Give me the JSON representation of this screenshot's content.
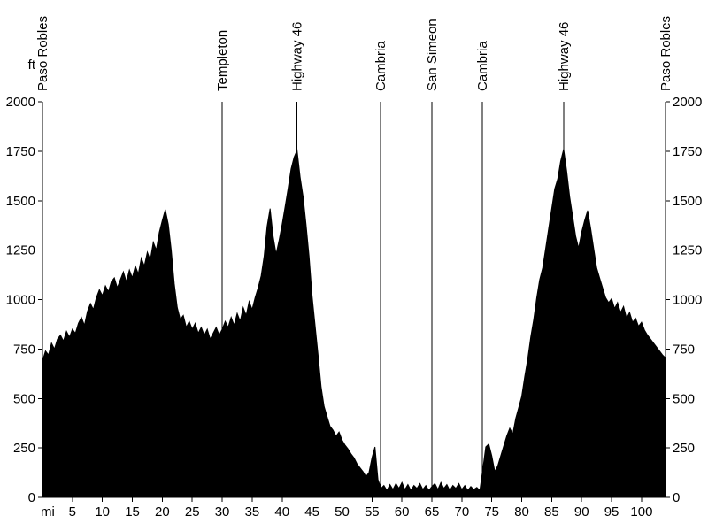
{
  "chart_data": {
    "type": "area",
    "title": "",
    "xlabel": "mi",
    "ylabel": "ft",
    "xlim": [
      0,
      104
    ],
    "ylim": [
      0,
      2000
    ],
    "x_ticks": [
      5,
      10,
      15,
      20,
      25,
      30,
      35,
      40,
      45,
      50,
      55,
      60,
      65,
      70,
      75,
      80,
      85,
      90,
      95,
      100
    ],
    "y_ticks": [
      0,
      250,
      500,
      750,
      1000,
      1250,
      1500,
      1750,
      2000
    ],
    "grid": false,
    "legend": "none",
    "fill_color": "#000000",
    "axis_color": "#000000",
    "markers": [
      {
        "mile": 0,
        "label": "Paso Robles"
      },
      {
        "mile": 30,
        "label": "Templeton"
      },
      {
        "mile": 42.5,
        "label": "Highway 46"
      },
      {
        "mile": 56.4,
        "label": "Cambria"
      },
      {
        "mile": 65,
        "label": "San Simeon"
      },
      {
        "mile": 73.4,
        "label": "Cambria"
      },
      {
        "mile": 87,
        "label": "Highway 46"
      },
      {
        "mile": 104,
        "label": "Paso Robles"
      }
    ],
    "profile_points": [
      [
        0,
        690
      ],
      [
        0.5,
        740
      ],
      [
        1,
        720
      ],
      [
        1.5,
        780
      ],
      [
        2,
        750
      ],
      [
        2.5,
        800
      ],
      [
        3,
        820
      ],
      [
        3.5,
        790
      ],
      [
        4,
        840
      ],
      [
        4.5,
        810
      ],
      [
        5,
        850
      ],
      [
        5.5,
        830
      ],
      [
        6,
        880
      ],
      [
        6.5,
        910
      ],
      [
        7,
        870
      ],
      [
        7.5,
        940
      ],
      [
        8,
        980
      ],
      [
        8.5,
        950
      ],
      [
        9,
        1010
      ],
      [
        9.5,
        1050
      ],
      [
        10,
        1020
      ],
      [
        10.5,
        1070
      ],
      [
        11,
        1040
      ],
      [
        11.5,
        1090
      ],
      [
        12,
        1110
      ],
      [
        12.5,
        1060
      ],
      [
        13,
        1100
      ],
      [
        13.5,
        1140
      ],
      [
        14,
        1090
      ],
      [
        14.5,
        1150
      ],
      [
        15,
        1110
      ],
      [
        15.5,
        1170
      ],
      [
        16,
        1130
      ],
      [
        16.5,
        1210
      ],
      [
        17,
        1170
      ],
      [
        17.5,
        1240
      ],
      [
        18,
        1200
      ],
      [
        18.5,
        1290
      ],
      [
        19,
        1250
      ],
      [
        19.5,
        1340
      ],
      [
        20,
        1400
      ],
      [
        20.5,
        1455
      ],
      [
        21,
        1380
      ],
      [
        21.5,
        1250
      ],
      [
        22,
        1080
      ],
      [
        22.5,
        960
      ],
      [
        23,
        900
      ],
      [
        23.5,
        920
      ],
      [
        24,
        860
      ],
      [
        24.5,
        890
      ],
      [
        25,
        850
      ],
      [
        25.5,
        880
      ],
      [
        26,
        830
      ],
      [
        26.5,
        860
      ],
      [
        27,
        820
      ],
      [
        27.5,
        850
      ],
      [
        28,
        800
      ],
      [
        28.5,
        830
      ],
      [
        29,
        860
      ],
      [
        29.5,
        820
      ],
      [
        30,
        850
      ],
      [
        30.5,
        890
      ],
      [
        31,
        860
      ],
      [
        31.5,
        910
      ],
      [
        32,
        870
      ],
      [
        32.5,
        930
      ],
      [
        33,
        890
      ],
      [
        33.5,
        960
      ],
      [
        34,
        920
      ],
      [
        34.5,
        990
      ],
      [
        35,
        950
      ],
      [
        35.5,
        1010
      ],
      [
        36,
        1060
      ],
      [
        36.5,
        1120
      ],
      [
        37,
        1220
      ],
      [
        37.5,
        1370
      ],
      [
        38,
        1460
      ],
      [
        38.5,
        1320
      ],
      [
        39,
        1230
      ],
      [
        39.5,
        1300
      ],
      [
        40,
        1380
      ],
      [
        40.5,
        1470
      ],
      [
        41,
        1560
      ],
      [
        41.5,
        1660
      ],
      [
        42,
        1720
      ],
      [
        42.5,
        1755
      ],
      [
        43,
        1620
      ],
      [
        43.5,
        1520
      ],
      [
        44,
        1380
      ],
      [
        44.5,
        1220
      ],
      [
        45,
        1020
      ],
      [
        45.5,
        870
      ],
      [
        46,
        720
      ],
      [
        46.5,
        560
      ],
      [
        47,
        460
      ],
      [
        47.5,
        410
      ],
      [
        48,
        360
      ],
      [
        48.5,
        340
      ],
      [
        49,
        310
      ],
      [
        49.5,
        330
      ],
      [
        50,
        290
      ],
      [
        50.5,
        265
      ],
      [
        51,
        245
      ],
      [
        51.5,
        220
      ],
      [
        52,
        200
      ],
      [
        52.5,
        170
      ],
      [
        53,
        150
      ],
      [
        53.5,
        130
      ],
      [
        54,
        105
      ],
      [
        54.5,
        125
      ],
      [
        55,
        200
      ],
      [
        55.5,
        255
      ],
      [
        56,
        90
      ],
      [
        56.5,
        45
      ],
      [
        57,
        60
      ],
      [
        57.5,
        35
      ],
      [
        58,
        65
      ],
      [
        58.5,
        40
      ],
      [
        59,
        70
      ],
      [
        59.5,
        45
      ],
      [
        60,
        75
      ],
      [
        60.5,
        40
      ],
      [
        61,
        65
      ],
      [
        61.5,
        35
      ],
      [
        62,
        60
      ],
      [
        62.5,
        45
      ],
      [
        63,
        70
      ],
      [
        63.5,
        40
      ],
      [
        64,
        60
      ],
      [
        64.5,
        35
      ],
      [
        65,
        55
      ],
      [
        65.5,
        70
      ],
      [
        66,
        40
      ],
      [
        66.5,
        75
      ],
      [
        67,
        45
      ],
      [
        67.5,
        65
      ],
      [
        68,
        35
      ],
      [
        68.5,
        60
      ],
      [
        69,
        45
      ],
      [
        69.5,
        70
      ],
      [
        70,
        40
      ],
      [
        70.5,
        60
      ],
      [
        71,
        35
      ],
      [
        71.5,
        55
      ],
      [
        72,
        40
      ],
      [
        72.5,
        50
      ],
      [
        73,
        35
      ],
      [
        73.5,
        140
      ],
      [
        74,
        255
      ],
      [
        74.5,
        270
      ],
      [
        75,
        210
      ],
      [
        75.5,
        130
      ],
      [
        76,
        160
      ],
      [
        76.5,
        210
      ],
      [
        77,
        260
      ],
      [
        77.5,
        310
      ],
      [
        78,
        350
      ],
      [
        78.5,
        320
      ],
      [
        79,
        400
      ],
      [
        79.5,
        455
      ],
      [
        80,
        510
      ],
      [
        80.5,
        610
      ],
      [
        81,
        700
      ],
      [
        81.5,
        810
      ],
      [
        82,
        900
      ],
      [
        82.5,
        1010
      ],
      [
        83,
        1100
      ],
      [
        83.5,
        1160
      ],
      [
        84,
        1260
      ],
      [
        84.5,
        1360
      ],
      [
        85,
        1460
      ],
      [
        85.5,
        1560
      ],
      [
        86,
        1610
      ],
      [
        86.5,
        1700
      ],
      [
        87,
        1760
      ],
      [
        87.5,
        1650
      ],
      [
        88,
        1520
      ],
      [
        88.5,
        1420
      ],
      [
        89,
        1320
      ],
      [
        89.5,
        1260
      ],
      [
        90,
        1340
      ],
      [
        90.5,
        1400
      ],
      [
        91,
        1450
      ],
      [
        91.5,
        1360
      ],
      [
        92,
        1260
      ],
      [
        92.5,
        1160
      ],
      [
        93,
        1110
      ],
      [
        93.5,
        1060
      ],
      [
        94,
        1010
      ],
      [
        94.5,
        985
      ],
      [
        95,
        1005
      ],
      [
        95.5,
        955
      ],
      [
        96,
        985
      ],
      [
        96.5,
        935
      ],
      [
        97,
        965
      ],
      [
        97.5,
        905
      ],
      [
        98,
        935
      ],
      [
        98.5,
        885
      ],
      [
        99,
        905
      ],
      [
        99.5,
        865
      ],
      [
        100,
        885
      ],
      [
        100.5,
        845
      ],
      [
        101,
        820
      ],
      [
        101.5,
        800
      ],
      [
        102,
        780
      ],
      [
        102.5,
        760
      ],
      [
        103,
        740
      ],
      [
        103.5,
        720
      ],
      [
        104,
        705
      ]
    ]
  }
}
